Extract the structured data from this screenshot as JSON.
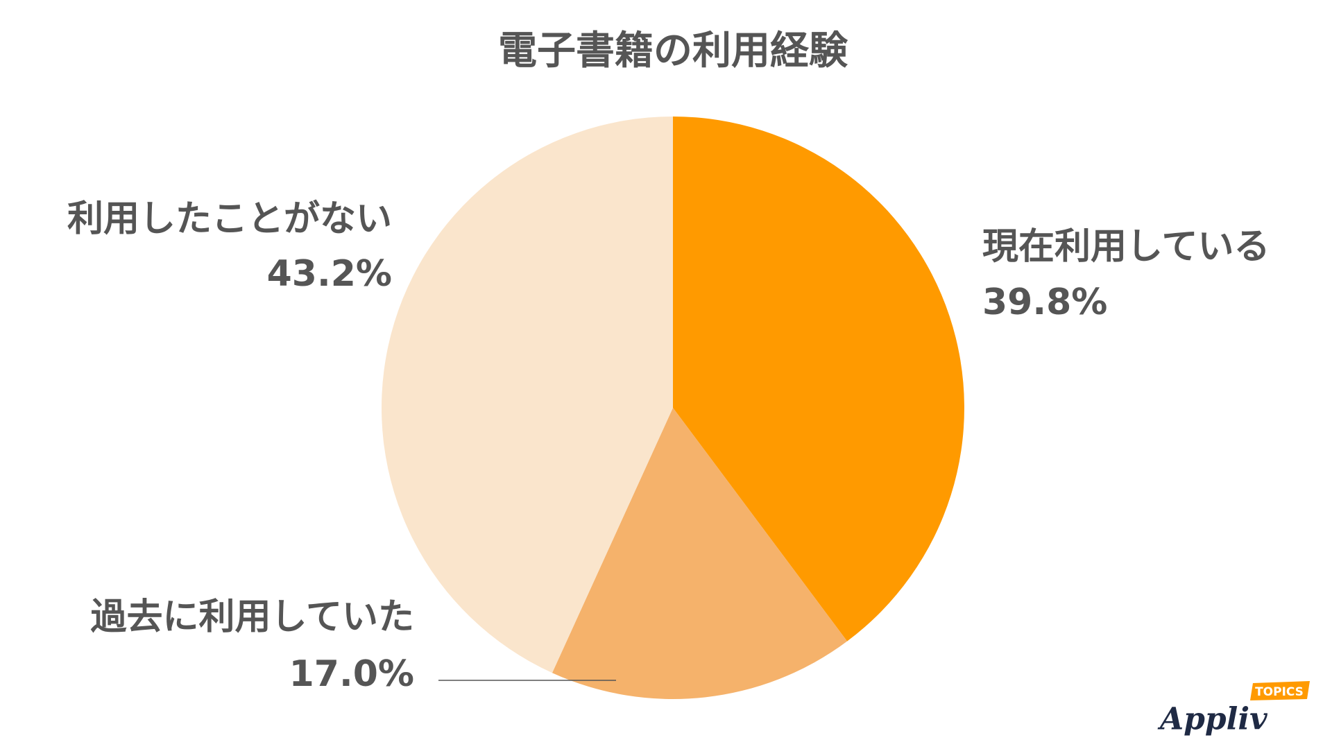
{
  "chart_data": {
    "type": "pie",
    "title": "電子書籍の利用経験",
    "categories": [
      "現在利用している",
      "過去に利用していた",
      "利用したことがない"
    ],
    "values": [
      39.8,
      17.0,
      43.2
    ],
    "value_labels": [
      "39.8%",
      "17.0%",
      "43.2%"
    ],
    "colors": [
      "#ff9a00",
      "#f5b26b",
      "#fae5cc"
    ]
  },
  "watermark": {
    "brand": "Appliv",
    "tag": "TOPICS"
  }
}
